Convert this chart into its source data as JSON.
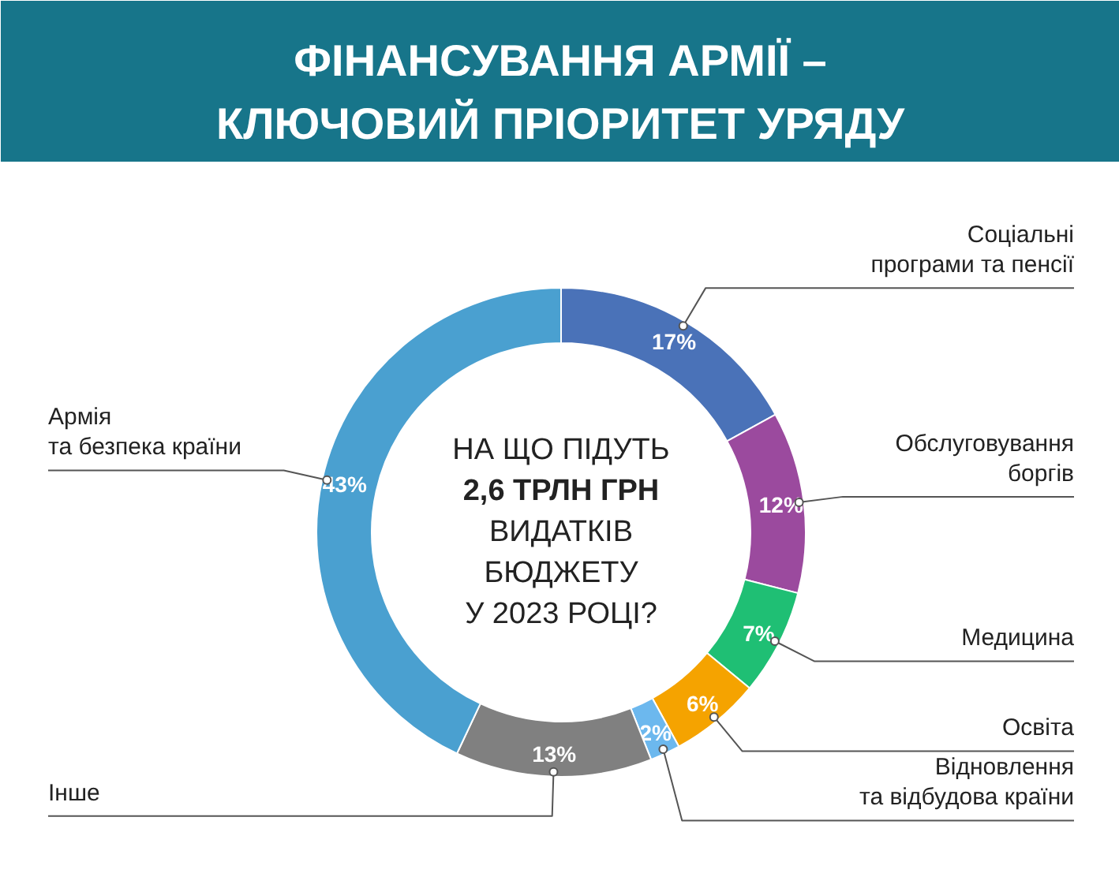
{
  "chart_data": {
    "type": "donut",
    "title": "ФІНАНСУВАННЯ АРМІЇ –\nКЛЮЧОВИЙ ПРІОРИТЕТ УРЯДУ",
    "categories": [
      "Соціальні програми та пенсії",
      "Обслуговування боргів",
      "Медицина",
      "Освіта",
      "Відновлення та відбудова країни",
      "Інше",
      "Армія та безпека країни"
    ],
    "values": [
      17,
      12,
      7,
      6,
      2,
      13,
      43
    ],
    "value_labels": [
      "17%",
      "12%",
      "7%",
      "6%",
      "2%",
      "13%",
      "43%"
    ],
    "colors": [
      "#4a72b8",
      "#9b4a9e",
      "#1fbf74",
      "#f5a300",
      "#6cb8ee",
      "#808080",
      "#4aa0d0"
    ],
    "annotations": [
      "НА ЩО ПІДУТЬ",
      "2,6 ТРЛН ГРН",
      "ВИДАТКІВ",
      "БЮДЖЕТУ",
      "У 2023 РОЦІ?"
    ]
  }
}
